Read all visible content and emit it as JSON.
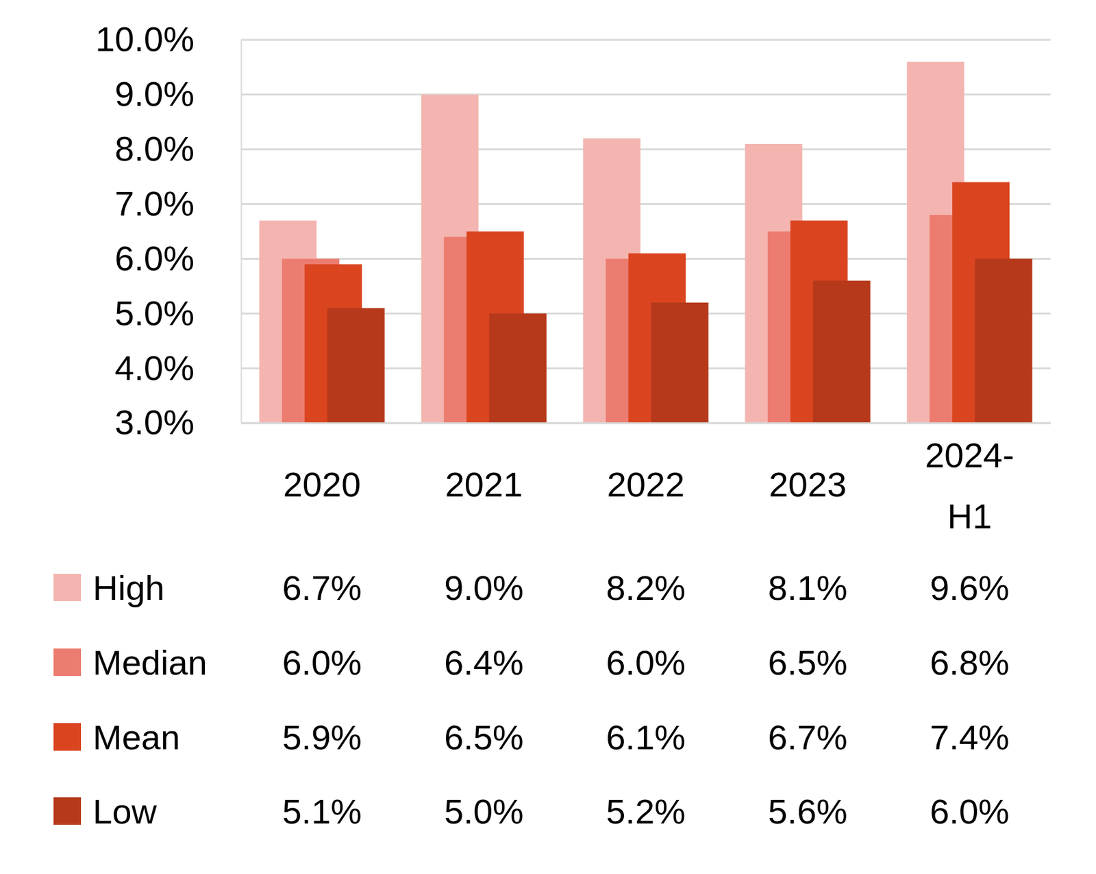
{
  "chart_data": {
    "type": "bar",
    "categories": [
      "2020",
      "2021",
      "2022",
      "2023",
      "2024-H1"
    ],
    "series": [
      {
        "name": "High",
        "color": "#f4b5b0",
        "values": [
          6.7,
          9.0,
          8.2,
          8.1,
          9.6
        ],
        "value_labels": [
          "6.7%",
          "9.0%",
          "8.2%",
          "8.1%",
          "9.6%"
        ]
      },
      {
        "name": "Median",
        "color": "#ec7c6f",
        "values": [
          6.0,
          6.4,
          6.0,
          6.5,
          6.8
        ],
        "value_labels": [
          "6.0%",
          "6.4%",
          "6.0%",
          "6.5%",
          "6.8%"
        ]
      },
      {
        "name": "Mean",
        "color": "#da4520",
        "values": [
          5.9,
          6.5,
          6.1,
          6.7,
          7.4
        ],
        "value_labels": [
          "5.9%",
          "6.5%",
          "6.1%",
          "6.7%",
          "7.4%"
        ]
      },
      {
        "name": "Low",
        "color": "#b5391a",
        "values": [
          5.1,
          5.0,
          5.2,
          5.6,
          6.0
        ],
        "value_labels": [
          "5.1%",
          "5.0%",
          "5.2%",
          "5.6%",
          "6.0%"
        ]
      }
    ],
    "ylim": [
      3,
      10
    ],
    "yticks": [
      {
        "value": 3,
        "label": "3.0%"
      },
      {
        "value": 4,
        "label": "4.0%"
      },
      {
        "value": 5,
        "label": "5.0%"
      },
      {
        "value": 6,
        "label": "6.0%"
      },
      {
        "value": 7,
        "label": "7.0%"
      },
      {
        "value": 8,
        "label": "8.0%"
      },
      {
        "value": 9,
        "label": "9.0%"
      },
      {
        "value": 10,
        "label": "10.0%"
      }
    ],
    "grid": true,
    "data_labels": true,
    "legend": "bottom"
  }
}
